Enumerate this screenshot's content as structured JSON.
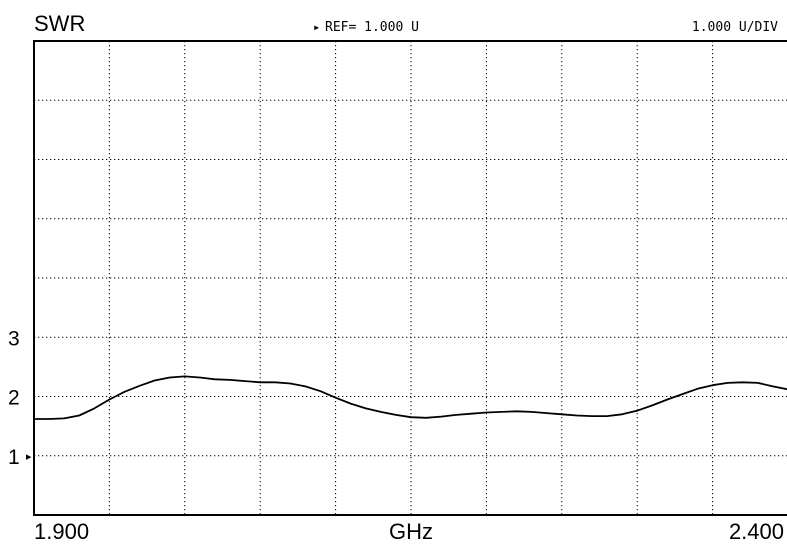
{
  "header": {
    "quantity": "SWR",
    "ref_marker": "▸",
    "ref_text": "REF=  1.000 U",
    "scale_text": "1.000 U/DIV"
  },
  "chart_data": {
    "type": "line",
    "title": "",
    "xlabel": "GHz",
    "ylabel": "SWR",
    "xlim": [
      1.9,
      2.4
    ],
    "ylim": [
      0,
      8
    ],
    "x_tick_labels": [
      "1.900",
      "2.400"
    ],
    "y_tick_labels": [
      "1",
      "2",
      "3"
    ],
    "y_tick_values": [
      1,
      2,
      3
    ],
    "ref_value": 1.0,
    "scale_per_div": 1.0,
    "grid": true,
    "grid_style": "dotted",
    "divisions": {
      "x": 10,
      "y": 8
    },
    "series": [
      {
        "x": [
          1.9,
          1.91,
          1.92,
          1.93,
          1.94,
          1.95,
          1.96,
          1.97,
          1.98,
          1.99,
          2.0,
          2.01,
          2.02,
          2.03,
          2.04,
          2.05,
          2.06,
          2.07,
          2.08,
          2.09,
          2.1,
          2.11,
          2.12,
          2.13,
          2.14,
          2.15,
          2.16,
          2.17,
          2.18,
          2.19,
          2.2,
          2.21,
          2.22,
          2.23,
          2.24,
          2.25,
          2.26,
          2.27,
          2.28,
          2.29,
          2.3,
          2.31,
          2.32,
          2.33,
          2.34,
          2.35,
          2.36,
          2.37,
          2.38,
          2.39,
          2.4
        ],
        "y": [
          1.62,
          1.62,
          1.63,
          1.68,
          1.8,
          1.95,
          2.08,
          2.18,
          2.27,
          2.32,
          2.34,
          2.32,
          2.29,
          2.28,
          2.26,
          2.24,
          2.24,
          2.22,
          2.17,
          2.09,
          1.98,
          1.88,
          1.8,
          1.74,
          1.69,
          1.65,
          1.64,
          1.66,
          1.69,
          1.71,
          1.73,
          1.74,
          1.75,
          1.74,
          1.72,
          1.7,
          1.68,
          1.67,
          1.67,
          1.7,
          1.76,
          1.85,
          1.95,
          2.04,
          2.13,
          2.19,
          2.23,
          2.24,
          2.23,
          2.17,
          2.12
        ]
      }
    ]
  }
}
